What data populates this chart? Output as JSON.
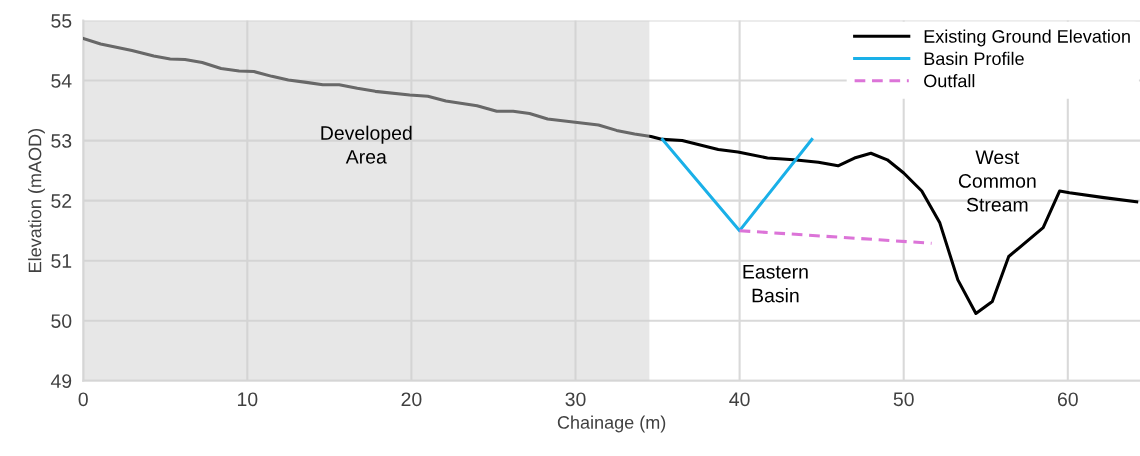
{
  "chart_data": {
    "type": "line",
    "xlabel": "Chainage (m)",
    "ylabel": "Elevation (mAOD)",
    "xlim": [
      0,
      64.4
    ],
    "ylim": [
      49,
      55
    ],
    "xticks": [
      0,
      10,
      20,
      30,
      40,
      50,
      60
    ],
    "yticks": [
      49,
      50,
      51,
      52,
      53,
      54,
      55
    ],
    "grid": true,
    "legend": "top right",
    "line_style": "solid",
    "marker": "none",
    "series": [
      {
        "name": "Existing Ground Elevation",
        "color": "#000000",
        "x": [
          0,
          1.06,
          2.97,
          4.3,
          5.3,
          6.2,
          7.25,
          8.4,
          9.5,
          10.4,
          11.5,
          12.5,
          13.6,
          14.6,
          15.6,
          16.7,
          17.8,
          19.9,
          21.0,
          22.1,
          24.0,
          25.2,
          26.2,
          27.2,
          28.3,
          31.4,
          32.5,
          33.6,
          34.6,
          35.3,
          36.5,
          38.7,
          39.9,
          41.7,
          43.3,
          44.8,
          46.0,
          47.0,
          48.0,
          49.0,
          50.0,
          51.1,
          52.2,
          53.3,
          54.4,
          55.4,
          56.4,
          58.5,
          59.5,
          60.1,
          62.2,
          64.2
        ],
        "values": [
          54.7,
          54.61,
          54.5,
          54.41,
          54.36,
          54.35,
          54.3,
          54.2,
          54.16,
          54.15,
          54.07,
          54.01,
          53.97,
          53.93,
          53.93,
          53.87,
          53.82,
          53.76,
          53.74,
          53.66,
          53.58,
          53.49,
          53.49,
          53.45,
          53.36,
          53.26,
          53.17,
          53.11,
          53.07,
          53.02,
          53.0,
          52.85,
          52.81,
          52.71,
          52.68,
          52.64,
          52.58,
          52.71,
          52.79,
          52.68,
          52.46,
          52.16,
          51.63,
          50.68,
          50.12,
          50.32,
          51.07,
          51.55,
          52.16,
          52.13,
          52.05,
          51.98
        ]
      },
      {
        "name": "Basin Profile",
        "color": "#1ab0e8",
        "x": [
          35.3,
          40.0,
          44.4
        ],
        "values": [
          53.02,
          51.5,
          53.02
        ]
      },
      {
        "name": "Outfall",
        "color": "#dc74d8",
        "line_style": "dashed",
        "x": [
          40.0,
          51.7
        ],
        "values": [
          51.5,
          51.29
        ]
      }
    ],
    "bands": [
      {
        "axis": "x",
        "from": 0,
        "to": 34.5,
        "label": "Developed Area",
        "color": "#d0d0d0"
      }
    ],
    "annotations": [
      "Eastern Basin",
      "West Common Stream"
    ]
  }
}
